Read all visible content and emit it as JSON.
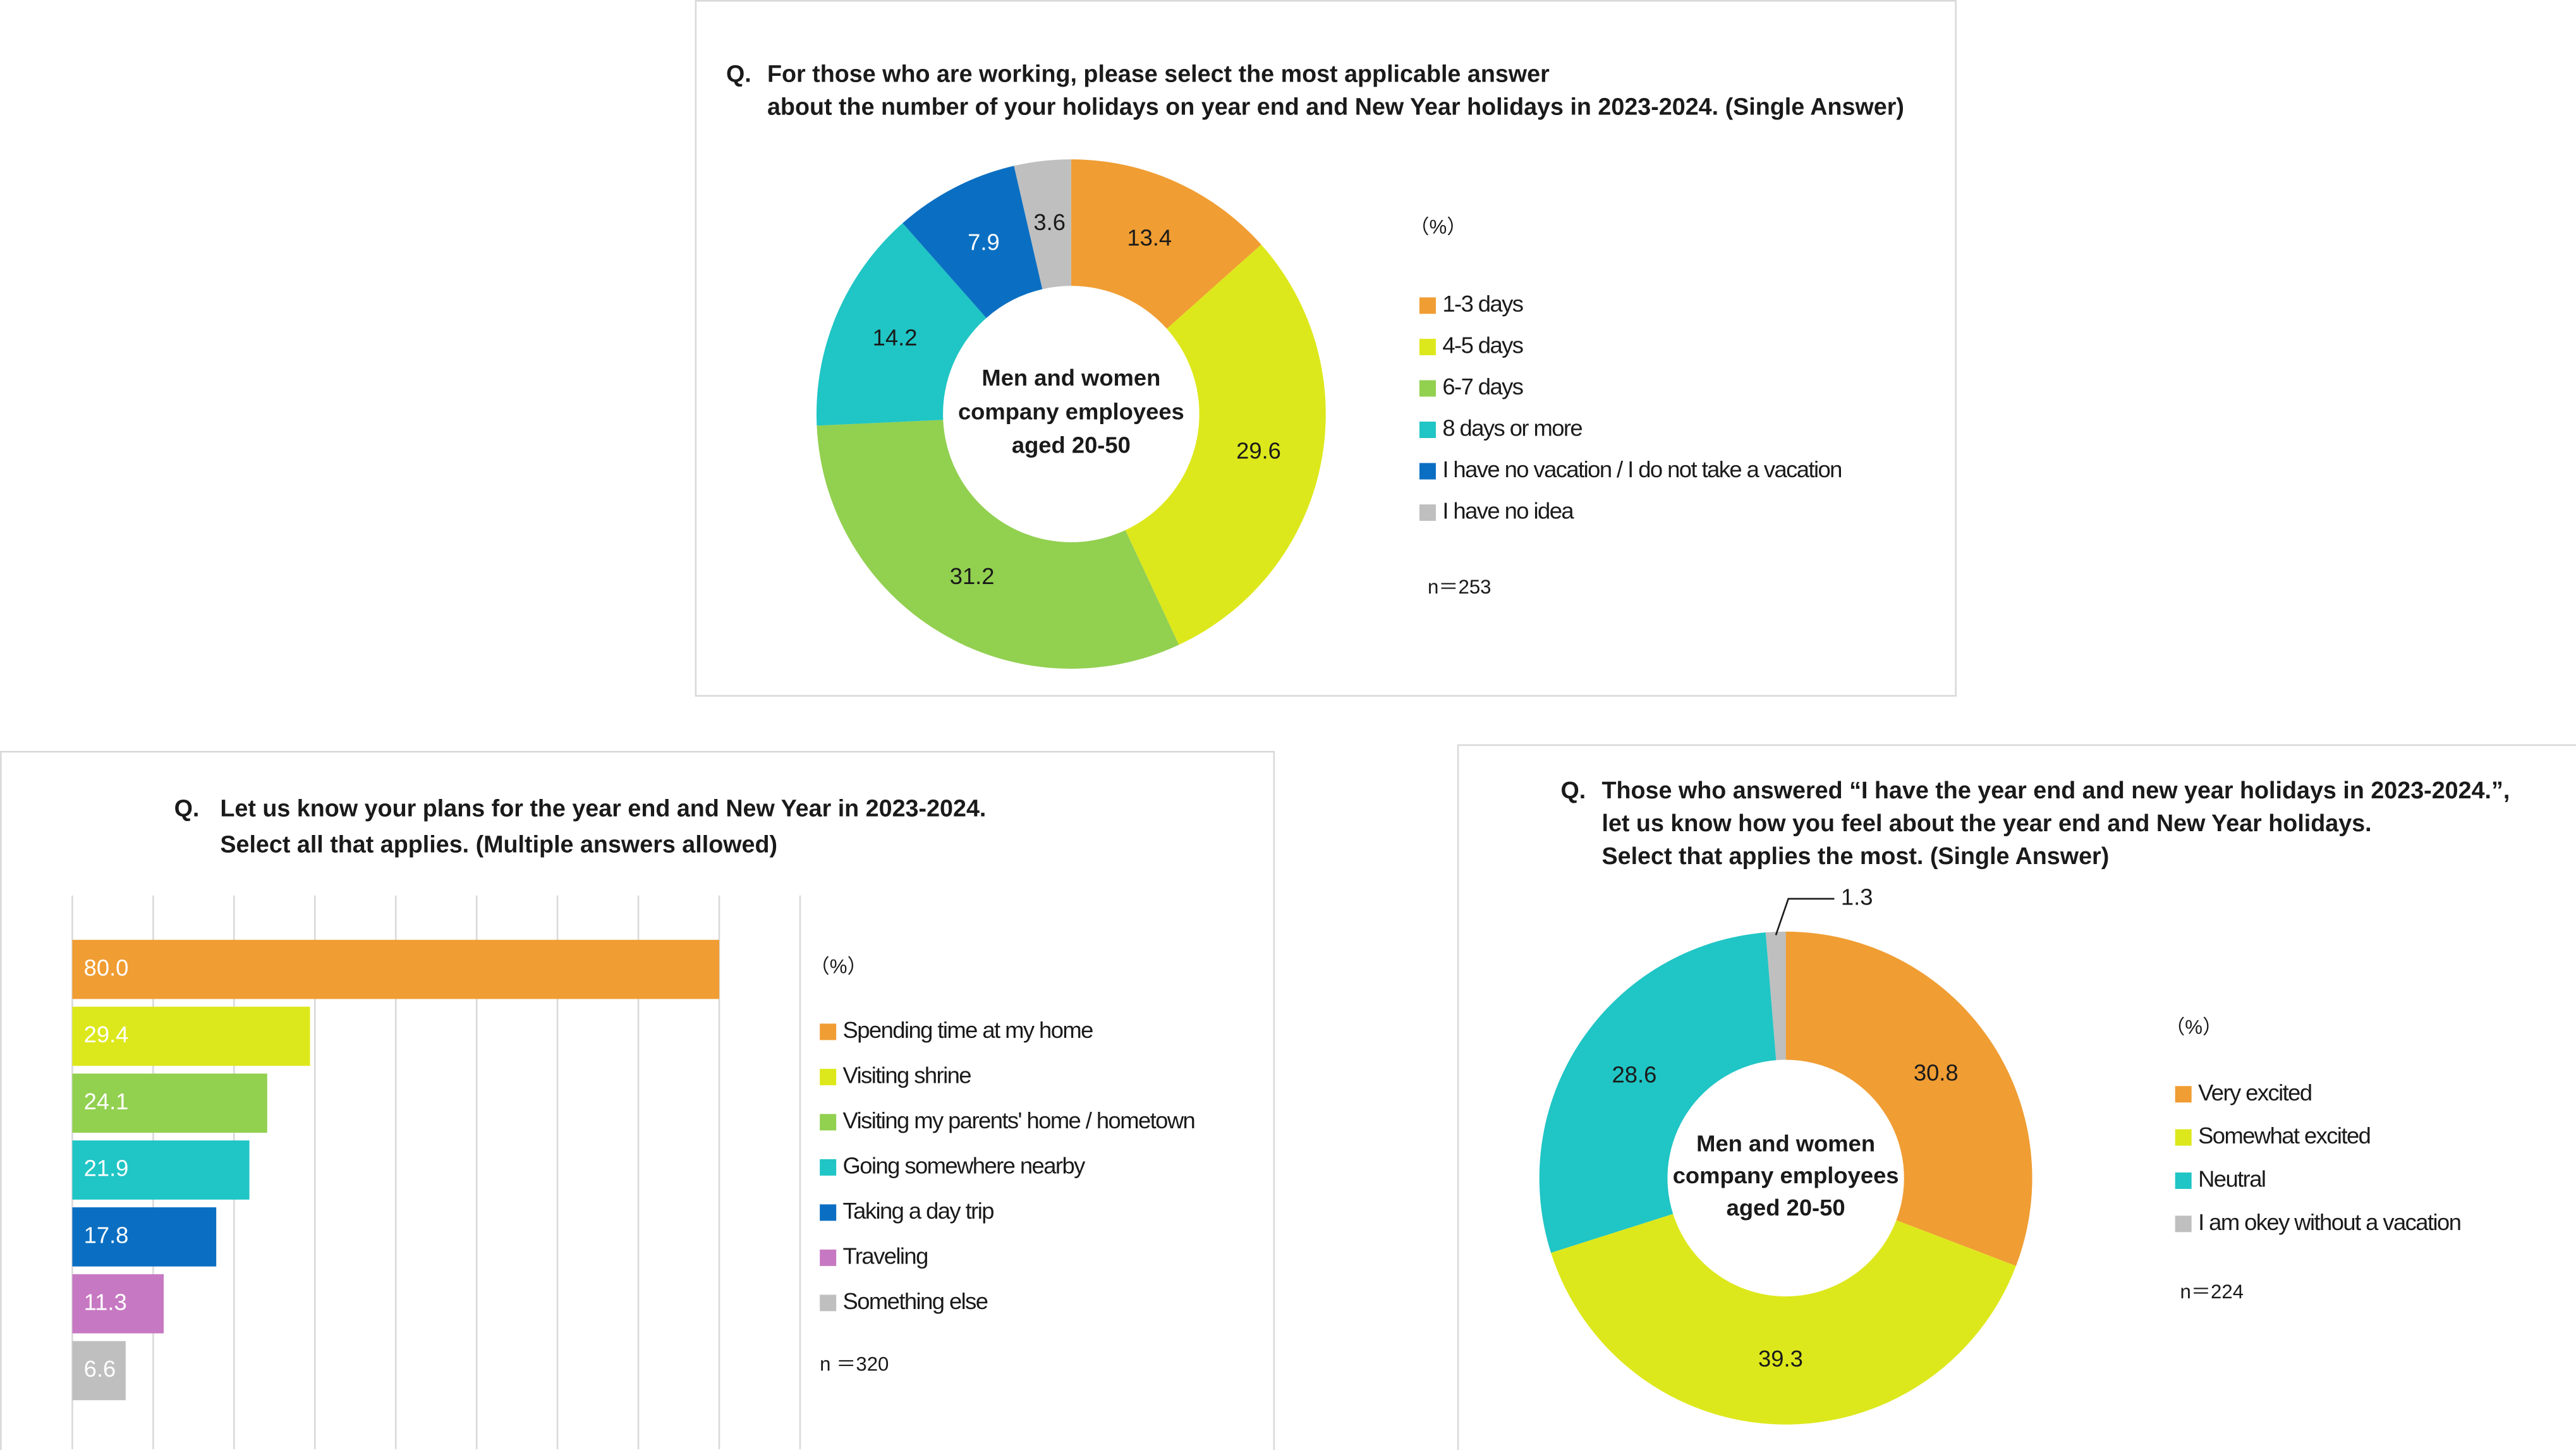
{
  "chart_data": [
    {
      "type": "donut",
      "question_label": "Q.",
      "title": [
        "For those who are working, please select the most applicable answer",
        "about the number of your holidays on year end and New Year holidays in 2023-2024.  (Single Answer)"
      ],
      "center_label": [
        "Men and women",
        "company employees",
        "aged 20-50"
      ],
      "unit": "（%）",
      "n": "n＝253",
      "categories": [
        "1-3 days",
        "4-5 days",
        "6-7 days",
        "8 days or more",
        "I have no vacation / I do not take a vacation",
        "I have no idea"
      ],
      "values": [
        13.4,
        29.6,
        31.2,
        14.2,
        7.9,
        3.6
      ],
      "colors": [
        "#f09d33",
        "#dde81c",
        "#92d050",
        "#20c5c5",
        "#0a6fc2",
        "#bfbfbf"
      ]
    },
    {
      "type": "bar",
      "orientation": "horizontal",
      "question_label": "Q.",
      "title": [
        "Let us know your plans for the year end and New Year in 2023-2024.",
        "Select all that applies. (Multiple answers allowed)"
      ],
      "unit": "（%）",
      "n": "n ＝320",
      "categories": [
        "Spending time at my home",
        "Visiting shrine",
        "Visiting my parents' home / hometown",
        "Going somewhere nearby",
        "Taking a day trip",
        "Traveling",
        "Something else"
      ],
      "values": [
        80.0,
        29.4,
        24.1,
        21.9,
        17.8,
        11.3,
        6.6
      ],
      "value_labels": [
        "80.0",
        "29.4",
        "24.1",
        "21.9",
        "17.8",
        "11.3",
        "6.6"
      ],
      "colors": [
        "#f09d33",
        "#dde81c",
        "#92d050",
        "#20c5c5",
        "#0a6fc2",
        "#c778c2",
        "#bfbfbf"
      ],
      "xlim": [
        0,
        90
      ],
      "xticks": [
        0,
        10,
        20,
        30,
        40,
        50,
        60,
        70,
        80,
        90
      ],
      "grid": true,
      "tick_labels": false
    },
    {
      "type": "donut",
      "question_label": "Q.",
      "title": [
        "Those who answered “I have the year end and new year holidays in 2023-2024.”,",
        "let us know how you feel about the year end and New Year holidays.",
        "Select that applies the most. (Single Answer)"
      ],
      "center_label": [
        "Men and women",
        "company employees",
        "aged 20-50"
      ],
      "unit": "（%）",
      "n": "n＝224",
      "categories": [
        "Very excited",
        "Somewhat excited",
        "Neutral",
        "I am okey without a vacation"
      ],
      "values": [
        30.8,
        39.3,
        28.6,
        1.3
      ],
      "colors": [
        "#f09d33",
        "#dde81c",
        "#20c5c5",
        "#bfbfbf"
      ]
    }
  ]
}
